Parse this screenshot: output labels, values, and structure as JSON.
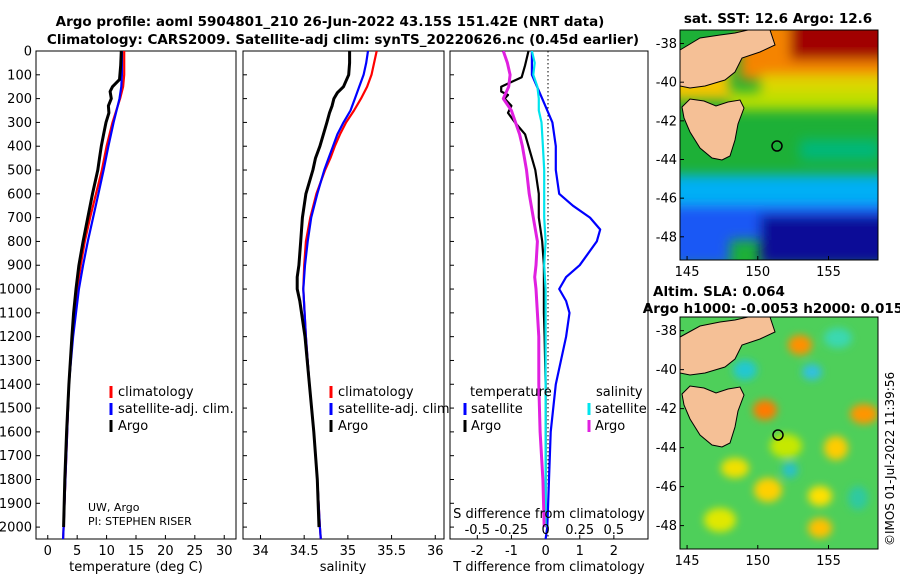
{
  "header": {
    "title_line1": "Argo profile: aoml 5904801_210 26-Jun-2022 43.15S 151.42E (NRT data)",
    "title_line2": "Climatology: CARS2009. Satellite-adj clim: synTS_20220626.nc (0.45d earlier)"
  },
  "colors": {
    "climatology": "#ff0000",
    "satellite": "#0000ff",
    "argo": "#000000",
    "sat_salinity": "#00e5ee",
    "argo_salinity": "#e020e0",
    "land": "#f5c096"
  },
  "chart_data": [
    {
      "id": "temperature",
      "type": "line",
      "xlabel": "temperature (deg C)",
      "ylabel": "",
      "xlim": [
        -2,
        32
      ],
      "ylim": [
        2050,
        0
      ],
      "xticks": [
        "0",
        "5",
        "10",
        "15",
        "20",
        "25",
        "30"
      ],
      "yticks": [
        "0",
        "100",
        "200",
        "300",
        "400",
        "500",
        "600",
        "700",
        "800",
        "900",
        "1000",
        "1100",
        "1200",
        "1300",
        "1400",
        "1500",
        "1600",
        "1700",
        "1800",
        "1900",
        "2000"
      ],
      "legend": [
        "climatology",
        "satellite-adj. clim.",
        "Argo"
      ],
      "annotation_line1": "UW, Argo",
      "annotation_line2": "PI: STEPHEN RISER",
      "series": [
        {
          "name": "climatology",
          "depth": [
            0,
            100,
            150,
            200,
            300,
            400,
            500,
            600,
            700,
            800,
            900,
            1000,
            1200,
            1400,
            1600,
            1800,
            2000,
            2050
          ],
          "values": [
            13.0,
            13.0,
            12.8,
            12.3,
            11.0,
            10.0,
            9.2,
            8.2,
            7.2,
            6.3,
            5.6,
            5.0,
            4.2,
            3.6,
            3.3,
            3.0,
            2.7,
            2.6
          ]
        },
        {
          "name": "satellite-adj. clim.",
          "depth": [
            0,
            100,
            150,
            200,
            300,
            400,
            500,
            600,
            700,
            800,
            900,
            1000,
            1200,
            1400,
            1600,
            1800,
            2000,
            2050
          ],
          "values": [
            12.6,
            12.6,
            12.5,
            12.2,
            11.2,
            10.3,
            9.5,
            8.6,
            7.7,
            6.8,
            6.0,
            5.3,
            4.3,
            3.6,
            3.3,
            3.0,
            2.7,
            2.6
          ]
        },
        {
          "name": "Argo",
          "depth": [
            0,
            60,
            120,
            150,
            170,
            200,
            230,
            260,
            300,
            350,
            400,
            450,
            500,
            600,
            700,
            800,
            900,
            1000,
            1100,
            1200,
            1400,
            1600,
            1800,
            2000
          ],
          "values": [
            12.5,
            12.4,
            12.2,
            11.0,
            10.6,
            10.8,
            10.3,
            10.4,
            9.9,
            9.5,
            9.1,
            8.8,
            8.5,
            7.6,
            6.8,
            6.0,
            5.3,
            4.8,
            4.4,
            4.1,
            3.6,
            3.2,
            2.9,
            2.7
          ]
        }
      ]
    },
    {
      "id": "salinity",
      "type": "line",
      "xlabel": "salinity",
      "xlim": [
        33.8,
        36.1
      ],
      "ylim": [
        2050,
        0
      ],
      "xticks": [
        "34",
        "34.5",
        "35",
        "35.5",
        "36"
      ],
      "legend": [
        "climatology",
        "satellite-adj. clim.",
        "Argo"
      ],
      "series": [
        {
          "name": "climatology",
          "depth": [
            0,
            50,
            100,
            150,
            200,
            250,
            300,
            350,
            400,
            450,
            500,
            600,
            700,
            800,
            900,
            1000,
            1200,
            1400,
            1600,
            1800,
            2000,
            2050
          ],
          "values": [
            35.33,
            35.3,
            35.27,
            35.22,
            35.15,
            35.07,
            34.98,
            34.91,
            34.85,
            34.8,
            34.74,
            34.64,
            34.57,
            34.52,
            34.5,
            34.49,
            34.52,
            34.56,
            34.61,
            34.65,
            34.68,
            34.69
          ]
        },
        {
          "name": "satellite-adj. clim.",
          "depth": [
            0,
            50,
            100,
            150,
            200,
            250,
            300,
            350,
            400,
            450,
            500,
            600,
            700,
            800,
            900,
            1000,
            1200,
            1400,
            1600,
            1800,
            2000,
            2050
          ],
          "values": [
            35.23,
            35.21,
            35.18,
            35.13,
            35.08,
            35.03,
            34.95,
            34.88,
            34.83,
            34.78,
            34.73,
            34.65,
            34.58,
            34.54,
            34.51,
            34.49,
            34.52,
            34.56,
            34.61,
            34.65,
            34.68,
            34.69
          ]
        },
        {
          "name": "Argo",
          "depth": [
            0,
            50,
            100,
            150,
            175,
            200,
            230,
            260,
            300,
            350,
            400,
            450,
            500,
            600,
            700,
            800,
            900,
            950,
            1000,
            1050,
            1200,
            1400,
            1600,
            1800,
            2000
          ],
          "values": [
            35.02,
            35.02,
            35.01,
            34.95,
            34.88,
            34.84,
            34.82,
            34.79,
            34.76,
            34.72,
            34.68,
            34.63,
            34.6,
            34.52,
            34.48,
            34.46,
            34.44,
            34.42,
            34.42,
            34.45,
            34.51,
            34.56,
            34.61,
            34.65,
            34.67
          ]
        }
      ]
    },
    {
      "id": "difference",
      "type": "line",
      "xlabel": "T difference from climatology",
      "xlabel_top": "S difference from climatology",
      "xlim": [
        -2.8,
        3.0
      ],
      "ylim": [
        2050,
        0
      ],
      "xticks": [
        "-2",
        "-1",
        "0",
        "1",
        "2"
      ],
      "xticks_s": [
        "-0.5",
        "-0.25",
        "0",
        "0.25",
        "0.5"
      ],
      "legend_temperature": "temperature",
      "legend_salinity": "salinity",
      "legend_items_left": [
        "satellite",
        "Argo"
      ],
      "legend_items_right": [
        "satellite",
        "Argo"
      ],
      "series": [
        {
          "name": "temperature satellite",
          "depth": [
            0,
            100,
            200,
            300,
            400,
            500,
            600,
            650,
            700,
            750,
            800,
            900,
            950,
            1000,
            1050,
            1100,
            1200,
            1400,
            1600,
            1800,
            2000,
            2050
          ],
          "values": [
            -0.4,
            -0.4,
            -0.1,
            0.2,
            0.3,
            0.3,
            0.4,
            0.8,
            1.3,
            1.6,
            1.5,
            1.0,
            0.6,
            0.4,
            0.6,
            0.7,
            0.6,
            0.3,
            0.15,
            0.1,
            0.05,
            0.0
          ]
        },
        {
          "name": "temperature Argo",
          "depth": [
            0,
            60,
            110,
            150,
            170,
            185,
            200,
            230,
            260,
            300,
            350,
            400,
            450,
            500,
            600,
            700,
            800,
            900,
            1000,
            1100,
            1200,
            1400,
            1600,
            1800,
            2000
          ],
          "values": [
            -0.5,
            -0.6,
            -0.7,
            -1.3,
            -1.3,
            -1.1,
            -1.2,
            -1.0,
            -1.1,
            -0.9,
            -0.6,
            -0.5,
            -0.4,
            -0.3,
            -0.2,
            -0.2,
            -0.1,
            -0.05,
            -0.05,
            -0.05,
            -0.03,
            0.0,
            0.0,
            0.0,
            0.0
          ]
        },
        {
          "name": "salinity satellite",
          "depth": [
            0,
            50,
            100,
            150,
            200,
            250,
            300,
            400,
            500,
            600,
            700,
            800,
            900,
            1000,
            1200,
            1500,
            1800,
            2000
          ],
          "values": [
            -0.1,
            -0.08,
            -0.09,
            -0.06,
            -0.05,
            -0.05,
            -0.03,
            -0.02,
            -0.01,
            -0.01,
            -0.01,
            0.0,
            -0.01,
            0.0,
            0.0,
            0.0,
            0.0,
            0.0
          ]
        },
        {
          "name": "salinity Argo",
          "depth": [
            0,
            50,
            100,
            150,
            200,
            250,
            300,
            350,
            400,
            500,
            600,
            700,
            800,
            900,
            950,
            1000,
            1100,
            1200,
            1400,
            1600,
            1800,
            2000
          ],
          "values": [
            -0.31,
            -0.28,
            -0.26,
            -0.27,
            -0.31,
            -0.25,
            -0.22,
            -0.19,
            -0.17,
            -0.14,
            -0.12,
            -0.09,
            -0.06,
            -0.07,
            -0.08,
            -0.07,
            -0.06,
            -0.05,
            -0.05,
            -0.04,
            -0.02,
            -0.01
          ]
        }
      ]
    },
    {
      "id": "sst_map",
      "type": "heatmap",
      "title": "sat. SST: 12.6 Argo: 12.6",
      "xticks": [
        "145",
        "150",
        "155"
      ],
      "yticks": [
        "-38",
        "-40",
        "-42",
        "-44",
        "-46",
        "-48"
      ],
      "lon_range": [
        144.5,
        158.5
      ],
      "lat_range": [
        -37.3,
        -49.2
      ],
      "argo_lon": 151.42,
      "argo_lat": -43.15
    },
    {
      "id": "sla_map",
      "type": "heatmap",
      "title_line1": "Altim. SLA: 0.064",
      "title_line2": "Argo h1000: -0.0053 h2000: 0.015",
      "xticks": [
        "145",
        "150",
        "155"
      ],
      "yticks": [
        "-38",
        "-40",
        "-42",
        "-44",
        "-46",
        "-48"
      ],
      "lon_range": [
        144.5,
        158.5
      ],
      "lat_range": [
        -37.3,
        -49.2
      ],
      "argo_lon": 151.42,
      "argo_lat": -43.15
    }
  ],
  "footer": {
    "copyright": "©IMOS 01-Jul-2022 11:39:56"
  }
}
